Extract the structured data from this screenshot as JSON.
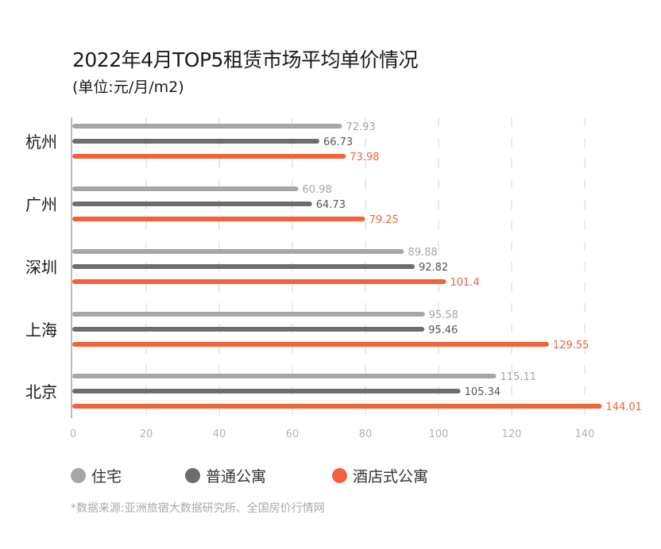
{
  "chart_data": {
    "type": "bar",
    "orientation": "horizontal",
    "title": "2022年4月TOP5租赁市场平均单价情况",
    "subtitle": "(单位:元/月/m2)",
    "categories": [
      "杭州",
      "广州",
      "深圳",
      "上海",
      "北京"
    ],
    "series": [
      {
        "name": "住宅",
        "color": "#a6a6a6",
        "label_color": "#a6a6a6",
        "values": [
          72.93,
          60.98,
          89.88,
          95.58,
          115.11
        ]
      },
      {
        "name": "普通公寓",
        "color": "#706c6c",
        "label_color": "#555555",
        "values": [
          66.73,
          64.73,
          92.82,
          95.46,
          105.34
        ]
      },
      {
        "name": "酒店式公寓",
        "color": "#f4623a",
        "label_color": "#f4623a",
        "values": [
          73.98,
          79.25,
          101.4,
          129.55,
          144.01
        ]
      }
    ],
    "value_labels": [
      [
        "72.93",
        "60.98",
        "89.88",
        "95.58",
        "115.11"
      ],
      [
        "66.73",
        "64.73",
        "92.82",
        "95.46",
        "105.34"
      ],
      [
        "73.98",
        "79.25",
        "101.4",
        "129.55",
        "144.01"
      ]
    ],
    "xlim": [
      0,
      150
    ],
    "xticks": [
      0,
      20,
      40,
      60,
      80,
      100,
      120,
      140
    ],
    "xtick_labels": [
      "0",
      "20",
      "40",
      "60",
      "80",
      "100",
      "120",
      "140"
    ],
    "xlabel": "",
    "ylabel": "",
    "grid": "vertical-dashed",
    "legend": "bottom"
  },
  "source_note": "*数据来源:亚洲旅宿大数据研究所、全国房价行情网"
}
